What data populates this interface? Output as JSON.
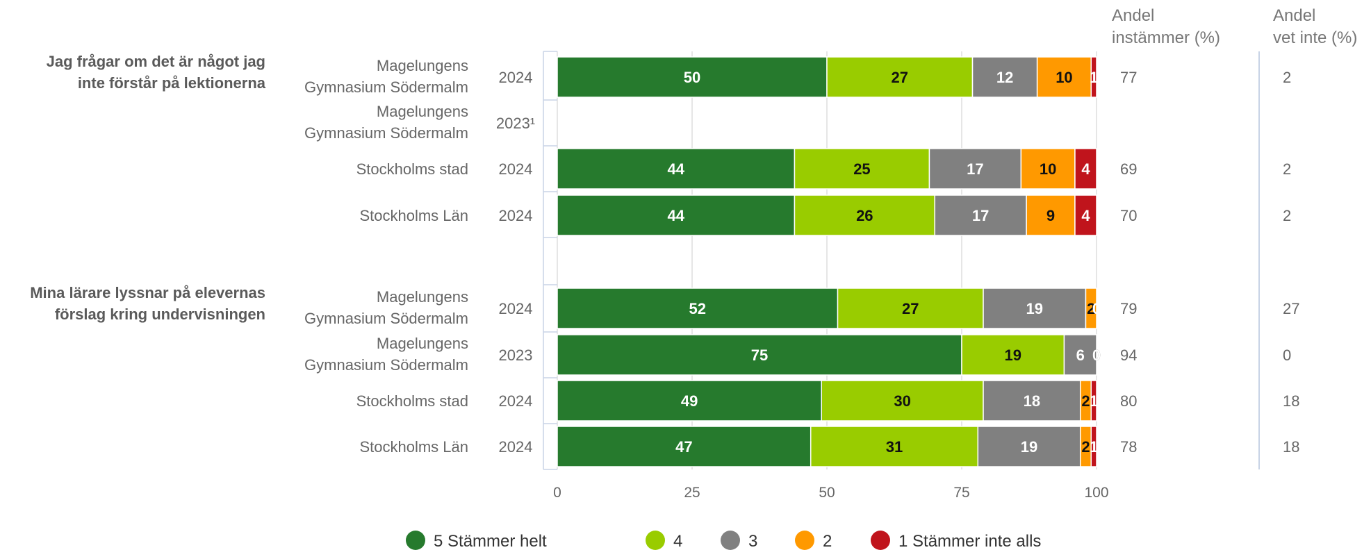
{
  "chart_data": {
    "type": "bar",
    "orientation": "horizontal",
    "stacked": true,
    "xlim": [
      0,
      100
    ],
    "xticks": [
      0,
      25,
      50,
      75,
      100
    ],
    "grid": true,
    "legend_position": "bottom",
    "headers": {
      "share_agree_line1": "Andel",
      "share_agree_line2": "instämmer (%)",
      "share_unknown_line1": "Andel",
      "share_unknown_line2": "vet inte (%)"
    },
    "series": [
      {
        "name": "5 Stämmer helt",
        "color": "#267a2d"
      },
      {
        "name": "4",
        "color": "#99cc00"
      },
      {
        "name": "3",
        "color": "#808080"
      },
      {
        "name": "2",
        "color": "#ff9900"
      },
      {
        "name": "1 Stämmer inte alls",
        "color": "#c0141c"
      }
    ],
    "groups": [
      {
        "question_lines": [
          "Jag frågar om det är något jag",
          "inte förstår på lektionerna"
        ],
        "rows": [
          {
            "entity_lines": [
              "Magelungens",
              "Gymnasium Södermalm"
            ],
            "year": "2024",
            "values": [
              50,
              27,
              12,
              10,
              1
            ],
            "agree": "77",
            "unknown": "2"
          },
          {
            "entity_lines": [
              "Magelungens",
              "Gymnasium Södermalm"
            ],
            "year": "2023¹",
            "values": [],
            "agree": "",
            "unknown": ""
          },
          {
            "entity_lines": [
              "Stockholms stad"
            ],
            "year": "2024",
            "values": [
              44,
              25,
              17,
              10,
              4
            ],
            "agree": "69",
            "unknown": "2"
          },
          {
            "entity_lines": [
              "Stockholms Län"
            ],
            "year": "2024",
            "values": [
              44,
              26,
              17,
              9,
              4
            ],
            "agree": "70",
            "unknown": "2"
          }
        ]
      },
      {
        "question_lines": [
          "Mina lärare lyssnar på elevernas",
          "förslag kring undervisningen"
        ],
        "rows": [
          {
            "entity_lines": [
              "Magelungens",
              "Gymnasium Södermalm"
            ],
            "year": "2024",
            "values": [
              52,
              27,
              19,
              2,
              0
            ],
            "agree": "79",
            "unknown": "27"
          },
          {
            "entity_lines": [
              "Magelungens",
              "Gymnasium Södermalm"
            ],
            "year": "2023",
            "values": [
              75,
              19,
              6,
              0,
              0
            ],
            "agree": "94",
            "unknown": "0"
          },
          {
            "entity_lines": [
              "Stockholms stad"
            ],
            "year": "2024",
            "values": [
              49,
              30,
              18,
              2,
              1
            ],
            "agree": "80",
            "unknown": "18"
          },
          {
            "entity_lines": [
              "Stockholms Län"
            ],
            "year": "2024",
            "values": [
              47,
              31,
              19,
              2,
              1
            ],
            "agree": "78",
            "unknown": "18"
          }
        ]
      }
    ]
  }
}
